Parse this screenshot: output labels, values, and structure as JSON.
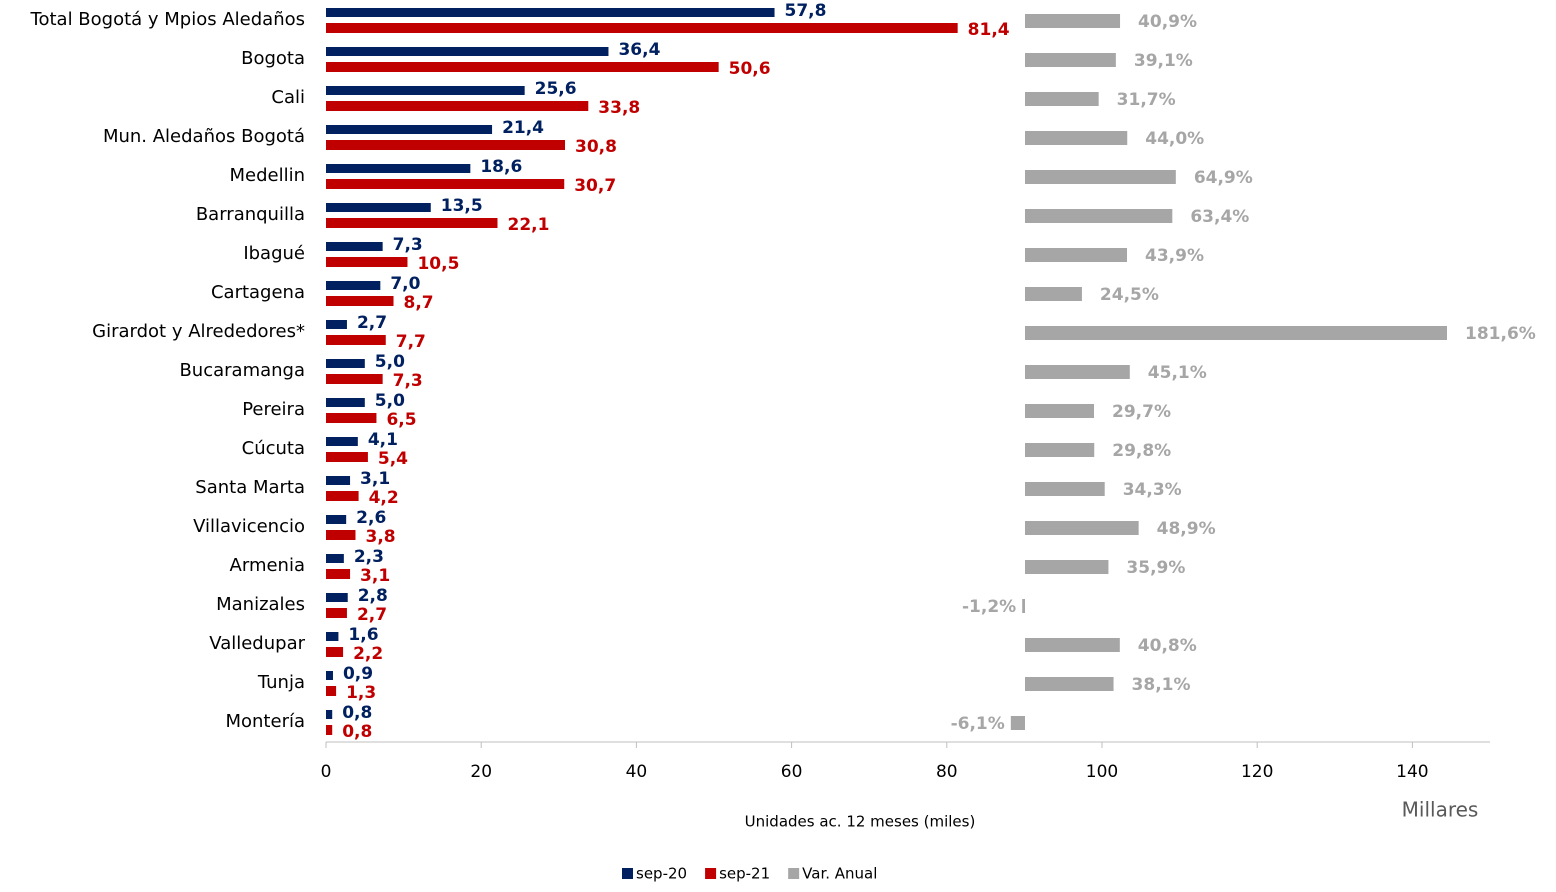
{
  "chart_data": {
    "type": "bar",
    "orientation": "horizontal",
    "categories": [
      "Total Bogotá y Mpios Aledaños",
      "Bogota",
      "Cali",
      "Mun.  Aledaños Bogotá",
      "Medellin",
      "Barranquilla",
      "Ibagué",
      "Cartagena",
      "Girardot y Alrededores*",
      "Bucaramanga",
      "Pereira",
      "Cúcuta",
      "Santa Marta",
      "Villavicencio",
      "Armenia",
      "Manizales",
      "Valledupar",
      "Tunja",
      "Montería"
    ],
    "series": [
      {
        "name": "sep-20",
        "color": "#002060",
        "values": [
          57.8,
          36.4,
          25.6,
          21.4,
          18.6,
          13.5,
          7.3,
          7.0,
          2.7,
          5.0,
          5.0,
          4.1,
          3.1,
          2.6,
          2.3,
          2.8,
          1.6,
          0.9,
          0.8
        ],
        "value_labels": [
          "57,8",
          "36,4",
          "25,6",
          "21,4",
          "18,6",
          "13,5",
          "7,3",
          "7,0",
          "2,7",
          "5,0",
          "5,0",
          "4,1",
          "3,1",
          "2,6",
          "2,3",
          "2,8",
          "1,6",
          "0,9",
          "0,8"
        ]
      },
      {
        "name": "sep-21",
        "color": "#c00000",
        "values": [
          81.4,
          50.6,
          33.8,
          30.8,
          30.7,
          22.1,
          10.5,
          8.7,
          7.7,
          7.3,
          6.5,
          5.4,
          4.2,
          3.8,
          3.1,
          2.7,
          2.2,
          1.3,
          0.8
        ],
        "value_labels": [
          "81,4",
          "50,6",
          "33,8",
          "30,8",
          "30,7",
          "22,1",
          "10,5",
          "8,7",
          "7,7",
          "7,3",
          "6,5",
          "5,4",
          "4,2",
          "3,8",
          "3,1",
          "2,7",
          "2,2",
          "1,3",
          "0,8"
        ]
      },
      {
        "name": "Var. Anual",
        "color": "#a6a6a6",
        "axis": "x2",
        "values": [
          40.9,
          39.1,
          31.7,
          44.0,
          64.9,
          63.4,
          43.9,
          24.5,
          181.6,
          45.1,
          29.7,
          29.8,
          34.3,
          48.9,
          35.9,
          -1.2,
          40.8,
          38.1,
          -6.1
        ],
        "value_labels": [
          "40,9%",
          "39,1%",
          "31,7%",
          "44,0%",
          "64,9%",
          "63,4%",
          "43,9%",
          "24,5%",
          "181,6%",
          "45,1%",
          "29,7%",
          "29,8%",
          "34,3%",
          "48,9%",
          "35,9%",
          "-1,2%",
          "40,8%",
          "38,1%",
          "-6,1%"
        ]
      }
    ],
    "xlim": [
      0,
      150
    ],
    "xticks": [
      0,
      20,
      40,
      60,
      80,
      100,
      120,
      140
    ],
    "xlabel": "Unidades ac. 12 meses (miles)",
    "unit_label": "Millares",
    "legend": "bottom"
  }
}
